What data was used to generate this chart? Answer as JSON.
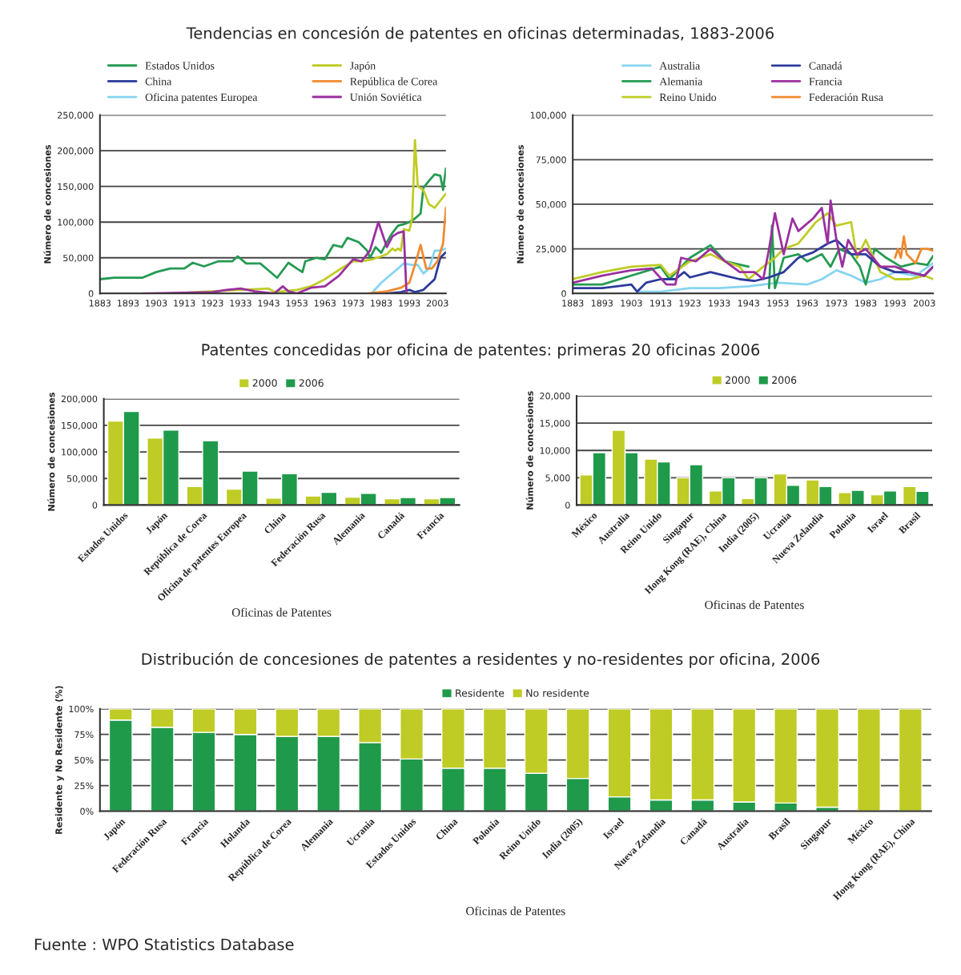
{
  "chart_data": [
    {
      "type": "line",
      "title": "Tendencias en concesión de patentes en oficinas determinadas, 1883-2006",
      "ylabel": "Número de concesiones",
      "legend": "top",
      "grid": "y",
      "xlim": [
        1883,
        2006
      ],
      "xticks": [
        1883,
        1893,
        1903,
        1913,
        1923,
        1933,
        1943,
        1953,
        1963,
        1973,
        1983,
        1993,
        2003
      ],
      "ylim": [
        0,
        250000
      ],
      "yticks": [
        {
          "value": 0,
          "label": "0"
        },
        {
          "value": 50000,
          "label": "50,000"
        },
        {
          "value": 100000,
          "label": "100,000"
        },
        {
          "value": 150000,
          "label": "150,000"
        },
        {
          "value": 200000,
          "label": "200,000"
        },
        {
          "value": 250000,
          "label": "250,000"
        }
      ],
      "series": [
        {
          "name": "Estados Unidos",
          "color": "#249a52",
          "x": [
            1883,
            1888,
            1893,
            1898,
            1903,
            1908,
            1913,
            1916,
            1920,
            1925,
            1930,
            1932,
            1935,
            1940,
            1943,
            1946,
            1950,
            1953,
            1955,
            1956,
            1960,
            1963,
            1966,
            1969,
            1971,
            1975,
            1978,
            1979,
            1981,
            1983,
            1985,
            1987,
            1989,
            1991,
            1993,
            1995,
            1997,
            1998,
            2000,
            2002,
            2004,
            2005,
            2006
          ],
          "values": [
            20000,
            22000,
            22000,
            22000,
            30000,
            35000,
            35000,
            43000,
            38000,
            45000,
            45000,
            52000,
            42000,
            42000,
            32000,
            22000,
            43000,
            35000,
            30000,
            45000,
            50000,
            48000,
            68000,
            65000,
            78000,
            72000,
            60000,
            50000,
            65000,
            57000,
            72000,
            85000,
            95000,
            97000,
            100000,
            105000,
            112000,
            148000,
            158000,
            167000,
            165000,
            145000,
            175000
          ]
        },
        {
          "name": "China",
          "color": "#2d3a9c",
          "x": [
            1985,
            1990,
            1993,
            1995,
            1998,
            2002,
            2004,
            2006
          ],
          "values": [
            0,
            2000,
            5000,
            2000,
            5000,
            20000,
            50000,
            58000
          ]
        },
        {
          "name": "Oficina patentes Europea",
          "color": "#86d4ef",
          "x": [
            1980,
            1983,
            1986,
            1989,
            1991,
            1994,
            1996,
            1998,
            2000,
            2002,
            2004,
            2006
          ],
          "values": [
            2000,
            15000,
            25000,
            35000,
            42000,
            40000,
            40000,
            28000,
            35000,
            60000,
            60000,
            63000
          ]
        },
        {
          "name": "Japón",
          "color": "#bfcc25",
          "x": [
            1913,
            1923,
            1933,
            1943,
            1945,
            1953,
            1958,
            1963,
            1966,
            1970,
            1973,
            1976,
            1980,
            1983,
            1985,
            1987,
            1988,
            1989,
            1990,
            1991,
            1993,
            1994,
            1995,
            1996,
            1998,
            2000,
            2002,
            2004,
            2006
          ],
          "values": [
            1000,
            3000,
            5000,
            7000,
            2000,
            5000,
            10000,
            20000,
            28000,
            38000,
            45000,
            45000,
            48000,
            52000,
            55000,
            63000,
            60000,
            63000,
            60000,
            90000,
            88000,
            105000,
            215000,
            150000,
            145000,
            125000,
            120000,
            130000,
            140000
          ]
        },
        {
          "name": "República de Corea",
          "color": "#f08a30",
          "x": [
            1978,
            1985,
            1990,
            1993,
            1995,
            1997,
            1999,
            2001,
            2003,
            2005,
            2006
          ],
          "values": [
            0,
            3000,
            8000,
            15000,
            40000,
            68000,
            35000,
            35000,
            45000,
            70000,
            120000
          ]
        },
        {
          "name": "Unión Soviética",
          "color": "#9b2fa0",
          "x": [
            1898,
            1913,
            1923,
            1928,
            1933,
            1938,
            1945,
            1948,
            1950,
            1953,
            1958,
            1963,
            1968,
            1973,
            1976,
            1979,
            1982,
            1985,
            1987,
            1989,
            1991,
            1992
          ],
          "values": [
            0,
            1000,
            2000,
            5000,
            7000,
            3000,
            0,
            10000,
            3000,
            0,
            8000,
            10000,
            25000,
            48000,
            45000,
            60000,
            100000,
            65000,
            80000,
            85000,
            87000,
            0
          ]
        }
      ]
    },
    {
      "type": "line",
      "ylabel": "Número de concesiones",
      "legend": "top",
      "grid": "y",
      "xlim": [
        1883,
        2006
      ],
      "xticks": [
        1883,
        1893,
        1903,
        1913,
        1923,
        1933,
        1943,
        1953,
        1963,
        1973,
        1983,
        1993,
        2003
      ],
      "ylim": [
        0,
        100000
      ],
      "yticks": [
        {
          "value": 0,
          "label": "0"
        },
        {
          "value": 25000,
          "label": "25,000"
        },
        {
          "value": 50000,
          "label": "50,000"
        },
        {
          "value": 75000,
          "label": "75,000"
        },
        {
          "value": 100000,
          "label": "100,000"
        }
      ],
      "series": [
        {
          "name": "Australia",
          "color": "#86d4ef",
          "x": [
            1905,
            1913,
            1923,
            1933,
            1943,
            1953,
            1963,
            1968,
            1973,
            1978,
            1983,
            1988,
            1993,
            2000,
            2006
          ],
          "values": [
            1000,
            1000,
            3000,
            3000,
            4000,
            6000,
            5000,
            8000,
            13000,
            10000,
            6000,
            8000,
            12000,
            10000,
            17000
          ]
        },
        {
          "name": "Alemania",
          "color": "#249a52",
          "x": [
            1883,
            1893,
            1903,
            1913,
            1916,
            1923,
            1930,
            1935,
            1943,
            1947,
            1950,
            1951,
            1952,
            1955,
            1960,
            1963,
            1968,
            1971,
            1974,
            1978,
            1981,
            1983,
            1986,
            1990,
            1995,
            2000,
            2004,
            2006
          ],
          "values": [
            5000,
            5000,
            10000,
            15000,
            8000,
            20000,
            27000,
            18000,
            15000,
            null,
            3000,
            38000,
            3000,
            20000,
            22000,
            18000,
            22000,
            15000,
            25000,
            22000,
            15000,
            5000,
            25000,
            20000,
            15000,
            17000,
            16000,
            21000
          ]
        },
        {
          "name": "Reino Unido",
          "color": "#bfcc25",
          "x": [
            1883,
            1893,
            1903,
            1913,
            1916,
            1923,
            1930,
            1935,
            1940,
            1943,
            1948,
            1952,
            1955,
            1960,
            1966,
            1970,
            1973,
            1978,
            1980,
            1983,
            1988,
            1993,
            1998,
            2003,
            2006
          ],
          "values": [
            8000,
            12000,
            15000,
            16000,
            10000,
            18000,
            22000,
            18000,
            15000,
            8000,
            15000,
            20000,
            25000,
            28000,
            40000,
            45000,
            38000,
            40000,
            20000,
            30000,
            12000,
            8000,
            8000,
            10000,
            8000
          ]
        },
        {
          "name": "Canadá",
          "color": "#2d3a9c",
          "x": [
            1883,
            1893,
            1903,
            1905,
            1908,
            1913,
            1918,
            1921,
            1923,
            1930,
            1935,
            1940,
            1945,
            1950,
            1955,
            1960,
            1965,
            1970,
            1973,
            1978,
            1983,
            1988,
            1993,
            1998,
            2003,
            2006
          ],
          "values": [
            3000,
            3000,
            5000,
            1000,
            6000,
            8000,
            8000,
            12000,
            9000,
            12000,
            10000,
            8000,
            7000,
            9000,
            12000,
            20000,
            23000,
            28000,
            30000,
            22000,
            22000,
            15000,
            12000,
            12000,
            10000,
            15000
          ]
        },
        {
          "name": "Francia",
          "color": "#9b2fa0",
          "x": [
            1883,
            1893,
            1903,
            1910,
            1915,
            1918,
            1920,
            1925,
            1930,
            1935,
            1940,
            1945,
            1948,
            1950,
            1952,
            1955,
            1958,
            1960,
            1965,
            1968,
            1970,
            1971,
            1973,
            1975,
            1977,
            1980,
            1983,
            1988,
            1993,
            1998,
            2003,
            2006
          ],
          "values": [
            6000,
            10000,
            13000,
            14000,
            5000,
            5000,
            20000,
            18000,
            25000,
            18000,
            12000,
            12000,
            8000,
            25000,
            45000,
            22000,
            42000,
            35000,
            42000,
            48000,
            28000,
            52000,
            30000,
            15000,
            30000,
            22000,
            25000,
            15000,
            15000,
            12000,
            10000,
            15000
          ]
        },
        {
          "name": "Federación Rusa",
          "color": "#f08a30",
          "x": [
            1993,
            1994,
            1995,
            1996,
            1997,
            2000,
            2002,
            2004,
            2006
          ],
          "values": [
            20000,
            25000,
            20000,
            32000,
            22000,
            17000,
            25000,
            25000,
            24000
          ]
        }
      ]
    },
    {
      "type": "bar",
      "title": "Patentes concedidas por oficina de patentes: primeras 20 oficinas 2006",
      "ylabel": "Número de concesiones",
      "xlabel": "Oficinas de Patentes",
      "legend": "top",
      "grid": "y",
      "categories": [
        "Estados Unidos",
        "Japón",
        "República de Corea",
        "Oficina de patentes Europea",
        "China",
        "Federación Rusa",
        "Alemania",
        "Canadá",
        "Francia"
      ],
      "ylim": [
        0,
        200000
      ],
      "yticks": [
        {
          "value": 0,
          "label": "0"
        },
        {
          "value": 50000,
          "label": "50,000"
        },
        {
          "value": 100000,
          "label": "100,000"
        },
        {
          "value": 150000,
          "label": "150,000"
        },
        {
          "value": 200000,
          "label": "200,000"
        }
      ],
      "series": [
        {
          "name": "2000",
          "color": "#bfcc25",
          "values": [
            158000,
            126000,
            35000,
            30000,
            13000,
            17000,
            15000,
            12000,
            12000
          ]
        },
        {
          "name": "2006",
          "color": "#1f9a4a",
          "values": [
            176000,
            141000,
            121000,
            64000,
            59000,
            24000,
            22000,
            14000,
            14000
          ]
        }
      ]
    },
    {
      "type": "bar",
      "ylabel": "Número de concesiones",
      "xlabel": "Oficinas de Patentes",
      "legend": "top",
      "grid": "y",
      "categories": [
        "México",
        "Australia",
        "Reino Unido",
        "Singapur",
        "Hong Kong (RAE), China",
        "India (2005)",
        "Ucrania",
        "Nueva Zelandia",
        "Polonia",
        "Israel",
        "Brasil"
      ],
      "ylim": [
        0,
        20000
      ],
      "yticks": [
        {
          "value": 0,
          "label": "0"
        },
        {
          "value": 5000,
          "label": "5,000"
        },
        {
          "value": 10000,
          "label": "10,000"
        },
        {
          "value": 15000,
          "label": "15,000"
        },
        {
          "value": 20000,
          "label": "20,000"
        }
      ],
      "series": [
        {
          "name": "2000",
          "color": "#bfcc25",
          "values": [
            5500,
            13700,
            8400,
            5000,
            2600,
            1200,
            5700,
            4600,
            2300,
            1900,
            3400
          ]
        },
        {
          "name": "2006",
          "color": "#1f9a4a",
          "values": [
            9600,
            9600,
            7900,
            7400,
            5000,
            5000,
            3600,
            3400,
            2700,
            2600,
            2500
          ]
        }
      ]
    },
    {
      "type": "bar",
      "stacked": true,
      "title": "Distribución de concesiones de patentes a residentes y no-residentes por oficina, 2006",
      "ylabel": "Residente y No Residente (%)",
      "xlabel": "Oficinas de Patentes",
      "legend": "top",
      "grid": "y",
      "annotations": [
        "Fuente : WPO Statistics Database"
      ],
      "categories": [
        "Japón",
        "Federación Rusa",
        "Francia",
        "Holanda",
        "República de Corea",
        "Alemania",
        "Ucrania",
        "Estados Unidos",
        "China",
        "Polonia",
        "Reino Unido",
        "India (2005)",
        "Israel",
        "Nueva Zelandia",
        "Canadá",
        "Australia",
        "Brasil",
        "Singapur",
        "México",
        "Hong Kong (RAE), China"
      ],
      "ylim": [
        0,
        100
      ],
      "yticks": [
        {
          "value": 0,
          "label": "0%"
        },
        {
          "value": 25,
          "label": "25%"
        },
        {
          "value": 50,
          "label": "50%"
        },
        {
          "value": 75,
          "label": "75%"
        },
        {
          "value": 100,
          "label": "100%"
        }
      ],
      "series": [
        {
          "name": "Residente",
          "color": "#1f9a4a",
          "values": [
            89,
            82,
            77,
            75,
            73,
            73,
            67,
            51,
            42,
            42,
            37,
            32,
            14,
            11,
            11,
            9,
            8,
            4,
            0,
            0
          ]
        },
        {
          "name": "No residente",
          "color": "#bfcc25",
          "values": [
            11,
            18,
            23,
            25,
            27,
            27,
            33,
            49,
            58,
            58,
            63,
            68,
            86,
            89,
            89,
            91,
            92,
            96,
            100,
            100
          ]
        }
      ]
    }
  ]
}
